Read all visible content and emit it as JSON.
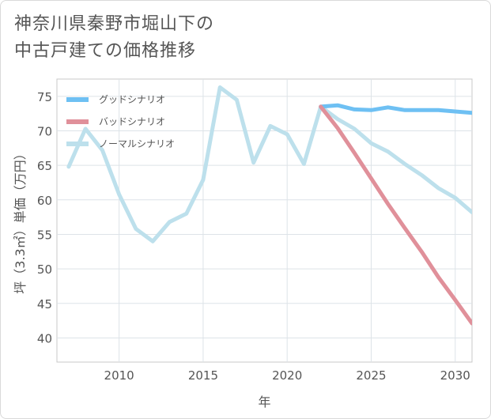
{
  "title_lines": [
    "神奈川県秦野市堀山下の",
    "中古戸建ての価格推移"
  ],
  "chart_data": {
    "type": "line",
    "title": "神奈川県秦野市堀山下の中古戸建ての価格推移",
    "xlabel": "年",
    "ylabel": "坪（3.3㎡）単価（万円）",
    "xlim": [
      2006.3,
      2031
    ],
    "ylim": [
      36.5,
      77.5
    ],
    "xticks": [
      2010,
      2015,
      2020,
      2025,
      2030
    ],
    "yticks": [
      40,
      45,
      50,
      55,
      60,
      65,
      70,
      75
    ],
    "grid": true,
    "legend_position": "top-left",
    "series": [
      {
        "name": "グッドシナリオ",
        "color": "#6ec0f3",
        "x": [
          2022,
          2023,
          2024,
          2025,
          2026,
          2027,
          2028,
          2029,
          2030,
          2031
        ],
        "y": [
          73.5,
          73.7,
          73.1,
          73.0,
          73.4,
          73.0,
          73.0,
          73.0,
          72.8,
          72.6
        ]
      },
      {
        "name": "バッドシナリオ",
        "color": "#e0909a",
        "x": [
          2022,
          2023,
          2024,
          2025,
          2026,
          2027,
          2028,
          2029,
          2030,
          2031
        ],
        "y": [
          73.5,
          70.4,
          66.8,
          63.1,
          59.4,
          55.9,
          52.5,
          48.8,
          45.5,
          42.1
        ]
      },
      {
        "name": "ノーマルシナリオ",
        "color": "#bde0ec",
        "x": [
          2007,
          2008,
          2009,
          2010,
          2011,
          2012,
          2013,
          2014,
          2015,
          2016,
          2017,
          2018,
          2019,
          2020,
          2021,
          2022,
          2023,
          2024,
          2025,
          2026,
          2027,
          2028,
          2029,
          2030,
          2031
        ],
        "y": [
          64.8,
          70.3,
          67.2,
          60.8,
          55.8,
          54.0,
          56.8,
          58.0,
          62.9,
          76.3,
          74.5,
          65.4,
          70.7,
          69.5,
          65.2,
          73.5,
          71.7,
          70.3,
          68.2,
          67.0,
          65.2,
          63.6,
          61.7,
          60.3,
          58.2
        ]
      }
    ]
  }
}
